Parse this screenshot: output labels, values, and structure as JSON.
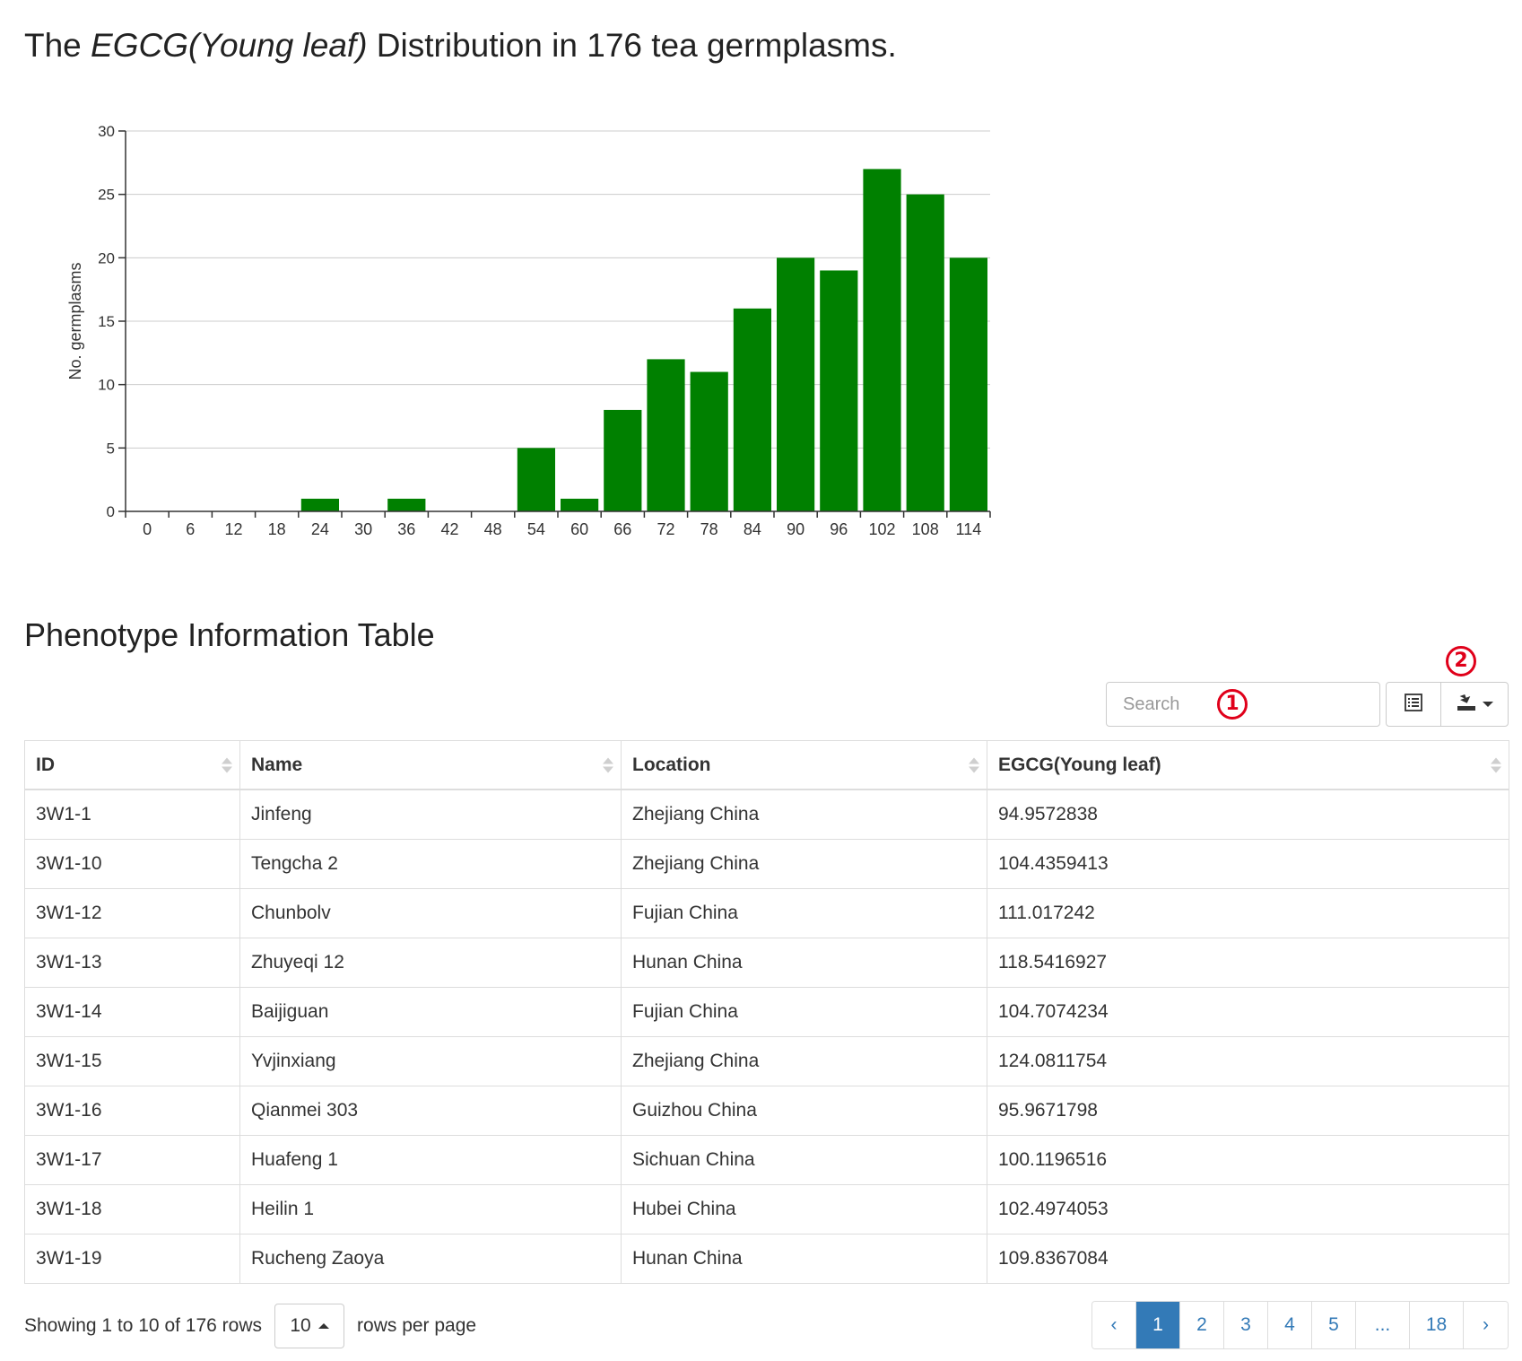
{
  "header": {
    "title_prefix": "The ",
    "title_italic": "EGCG(Young leaf)",
    "title_suffix": " Distribution in 176 tea germplasms."
  },
  "chart_data": {
    "type": "bar",
    "categories": [
      "0",
      "6",
      "12",
      "18",
      "24",
      "30",
      "36",
      "42",
      "48",
      "54",
      "60",
      "66",
      "72",
      "78",
      "84",
      "90",
      "96",
      "102",
      "108",
      "114"
    ],
    "values": [
      0,
      0,
      0,
      0,
      1,
      0,
      1,
      0,
      0,
      5,
      1,
      8,
      12,
      11,
      16,
      20,
      19,
      27,
      25,
      20
    ],
    "ylabel": "No. germplasms",
    "ylim": [
      0,
      30
    ],
    "yticks": [
      0,
      5,
      10,
      15,
      20,
      25,
      30
    ],
    "grid": true,
    "bar_color": "#008000"
  },
  "section_title": "Phenotype Information Table",
  "annotations": {
    "one": "1",
    "two": "2"
  },
  "toolbar": {
    "search_placeholder": "Search",
    "columns_icon": "list-icon",
    "export_icon": "export-icon"
  },
  "table": {
    "columns": [
      "ID",
      "Name",
      "Location",
      "EGCG(Young leaf)"
    ],
    "rows": [
      [
        "3W1-1",
        "Jinfeng",
        "Zhejiang China",
        "94.9572838"
      ],
      [
        "3W1-10",
        "Tengcha 2",
        "Zhejiang China",
        "104.4359413"
      ],
      [
        "3W1-12",
        "Chunbolv",
        "Fujian China",
        "111.017242"
      ],
      [
        "3W1-13",
        "Zhuyeqi 12",
        "Hunan China",
        "118.5416927"
      ],
      [
        "3W1-14",
        "Baijiguan",
        "Fujian China",
        "104.7074234"
      ],
      [
        "3W1-15",
        "Yvjinxiang",
        "Zhejiang China",
        "124.0811754"
      ],
      [
        "3W1-16",
        "Qianmei 303",
        "Guizhou China",
        "95.9671798"
      ],
      [
        "3W1-17",
        "Huafeng 1",
        "Sichuan China",
        "100.1196516"
      ],
      [
        "3W1-18",
        "Heilin 1",
        "Hubei China",
        "102.4974053"
      ],
      [
        "3W1-19",
        "Rucheng Zaoya",
        "Hunan China",
        "109.8367084"
      ]
    ]
  },
  "footer": {
    "showing": "Showing 1 to 10 of 176 rows",
    "page_size": "10",
    "rows_per_page": "rows per page"
  },
  "pagination": {
    "prev": "‹",
    "pages": [
      "1",
      "2",
      "3",
      "4",
      "5",
      "...",
      "18"
    ],
    "active": "1",
    "next": "›"
  },
  "colors": {
    "accent": "#337ab7",
    "bar": "#008000",
    "annotation": "#e0001a"
  }
}
